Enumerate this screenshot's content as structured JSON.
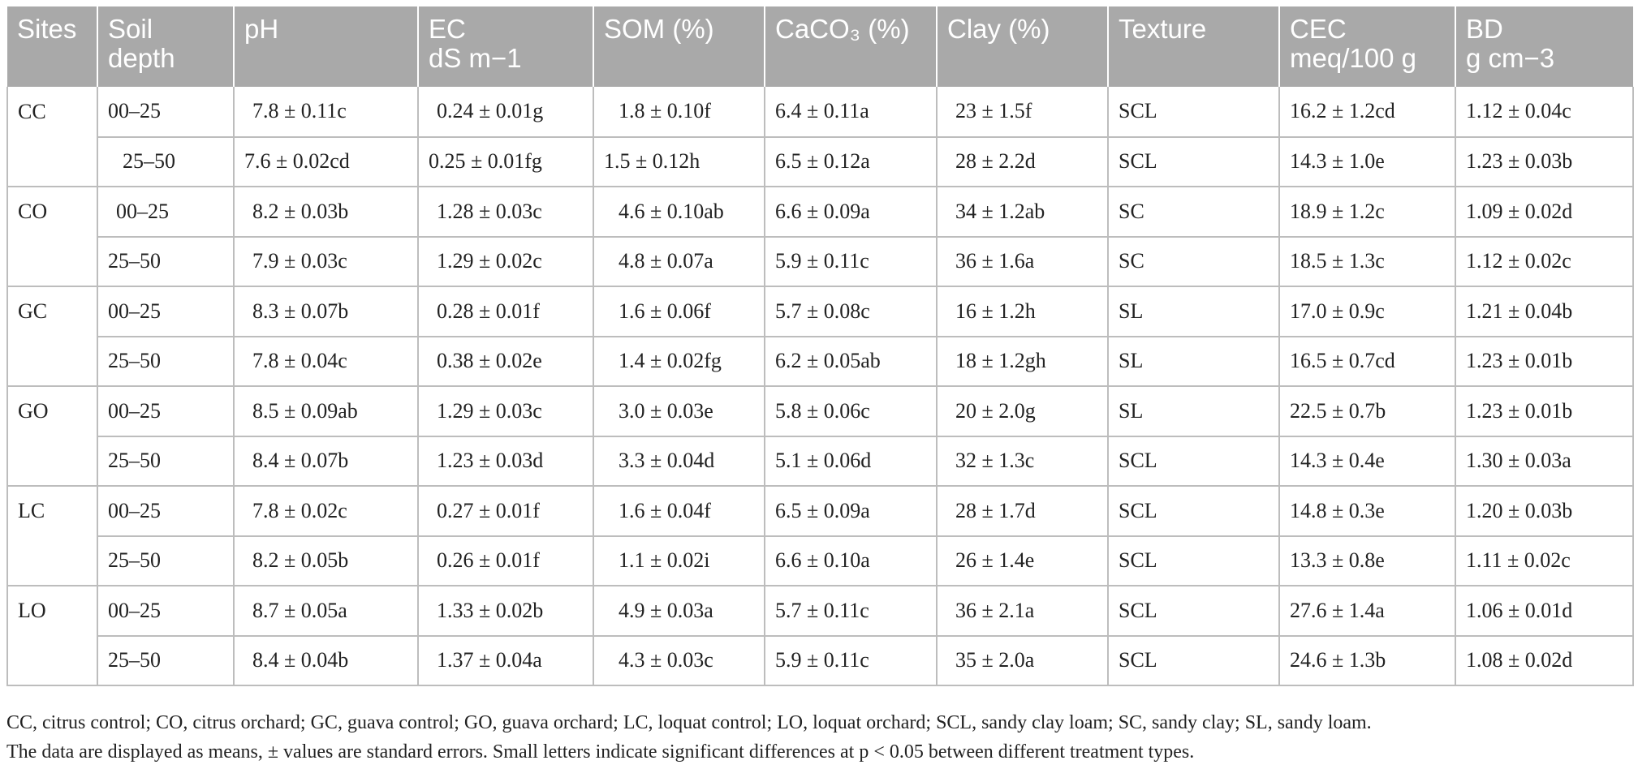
{
  "table": {
    "headers": [
      [
        "Sites"
      ],
      [
        "Soil",
        "depth"
      ],
      [
        "pH"
      ],
      [
        "EC",
        "dS m−1"
      ],
      [
        "SOM (%)"
      ],
      [
        "CaCO₃ (%)"
      ],
      [
        "Clay (%)"
      ],
      [
        "Texture"
      ],
      [
        "CEC",
        "meq/100 g"
      ],
      [
        "BD",
        "g cm−3"
      ]
    ],
    "rows": [
      [
        "CC",
        "00–25",
        "7.8 ± 0.11c",
        "0.24 ± 0.01g",
        "1.8 ± 0.10f",
        "6.4 ± 0.11a",
        "23 ± 1.5f",
        "SCL",
        "16.2 ± 1.2cd",
        "1.12 ± 0.04c"
      ],
      [
        "",
        "25–50",
        "7.6 ± 0.02cd",
        "0.25 ± 0.01fg",
        "1.5 ± 0.12h",
        "6.5 ± 0.12a",
        "28 ± 2.2d",
        "SCL",
        "14.3 ± 1.0e",
        "1.23 ± 0.03b"
      ],
      [
        "CO",
        "00–25",
        "8.2 ± 0.03b",
        "1.28 ± 0.03c",
        "4.6 ± 0.10ab",
        "6.6 ± 0.09a",
        "34 ± 1.2ab",
        "SC",
        "18.9 ± 1.2c",
        "1.09 ± 0.02d"
      ],
      [
        "",
        "25–50",
        "7.9 ± 0.03c",
        "1.29 ± 0.02c",
        "4.8 ± 0.07a",
        "5.9 ± 0.11c",
        "36 ± 1.6a",
        "SC",
        "18.5 ± 1.3c",
        "1.12 ± 0.02c"
      ],
      [
        "GC",
        "00–25",
        "8.3 ± 0.07b",
        "0.28 ± 0.01f",
        "1.6 ± 0.06f",
        "5.7 ± 0.08c",
        "16 ± 1.2h",
        "SL",
        "17.0 ± 0.9c",
        "1.21 ± 0.04b"
      ],
      [
        "",
        "25–50",
        "7.8 ± 0.04c",
        "0.38 ± 0.02e",
        "1.4 ± 0.02fg",
        "6.2 ± 0.05ab",
        "18 ± 1.2gh",
        "SL",
        "16.5 ± 0.7cd",
        "1.23 ± 0.01b"
      ],
      [
        "GO",
        "00–25",
        "8.5 ± 0.09ab",
        "1.29 ± 0.03c",
        "3.0 ± 0.03e",
        "5.8 ± 0.06c",
        "20 ± 2.0g",
        "SL",
        "22.5 ± 0.7b",
        "1.23 ± 0.01b"
      ],
      [
        "",
        "25–50",
        "8.4 ± 0.07b",
        "1.23 ± 0.03d",
        "3.3 ± 0.04d",
        "5.1 ± 0.06d",
        "32 ± 1.3c",
        "SCL",
        "14.3 ± 0.4e",
        "1.30 ± 0.03a"
      ],
      [
        "LC",
        "00–25",
        "7.8 ± 0.02c",
        "0.27 ± 0.01f",
        "1.6 ± 0.04f",
        "6.5 ± 0.09a",
        "28 ± 1.7d",
        "SCL",
        "14.8 ± 0.3e",
        "1.20 ± 0.03b"
      ],
      [
        "",
        "25–50",
        "8.2 ± 0.05b",
        "0.26 ± 0.01f",
        "1.1 ± 0.02i",
        "6.6 ± 0.10a",
        "26 ± 1.4e",
        "SCL",
        "13.3 ± 0.8e",
        "1.11 ± 0.02c"
      ],
      [
        "LO",
        "00–25",
        "8.7 ± 0.05a",
        "1.33 ± 0.02b",
        "4.9 ± 0.03a",
        "5.7 ± 0.11c",
        "36 ± 2.1a",
        "SCL",
        "27.6 ± 1.4a",
        "1.06 ± 0.01d"
      ],
      [
        "",
        "25–50",
        "8.4 ± 0.04b",
        "1.37 ± 0.04a",
        "4.3 ± 0.03c",
        "5.9 ± 0.11c",
        "35 ± 2.0a",
        "SCL",
        "24.6 ± 1.3b",
        "1.08 ± 0.02d"
      ]
    ]
  },
  "footnotes": [
    "CC, citrus control; CO, citrus orchard; GC, guava control; GO, guava orchard; LC, loquat control; LO, loquat orchard; SCL, sandy clay loam; SC, sandy clay; SL, sandy loam.",
    "The data are displayed as means, ± values are standard errors. Small letters indicate significant differences at p < 0.05 between different treatment types."
  ],
  "colors": {
    "header_background": "#a9a9a9",
    "header_text": "#ffffff",
    "grid_line": "#bdbdbd",
    "body_text": "#222222"
  }
}
